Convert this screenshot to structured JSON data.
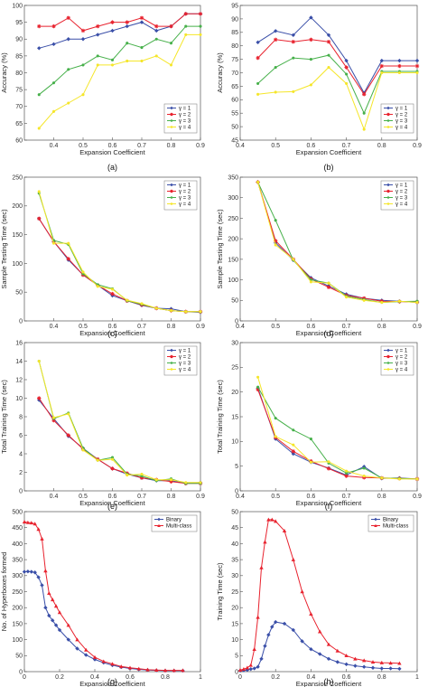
{
  "chart_data": [
    {
      "id": "a",
      "caption": "(a)",
      "type": "line",
      "xlabel": "Expansion Coefficient",
      "ylabel": "Accuracy (%)",
      "xlim": [
        0.3,
        0.9
      ],
      "ylim": [
        60,
        100
      ],
      "xticks": [
        "0.4",
        "0.5",
        "0.6",
        "0.7",
        "0.8",
        "0.9"
      ],
      "yticks": [
        "60",
        "65",
        "70",
        "75",
        "80",
        "85",
        "90",
        "95",
        "100"
      ],
      "legend_position": "bottom-right",
      "x": [
        0.35,
        0.4,
        0.45,
        0.5,
        0.55,
        0.6,
        0.65,
        0.7,
        0.75,
        0.8,
        0.85,
        0.9
      ],
      "series": [
        {
          "name": "γ = 1",
          "color": "#3a4fa8",
          "marker": "diamond",
          "values": [
            87.3,
            88.5,
            90.0,
            90.0,
            91.3,
            92.5,
            93.8,
            95.0,
            92.5,
            93.8,
            97.5,
            97.5
          ]
        },
        {
          "name": "γ = 2",
          "color": "#e8222e",
          "marker": "star",
          "values": [
            93.8,
            93.8,
            96.3,
            92.5,
            93.8,
            95.0,
            95.0,
            96.3,
            93.8,
            93.8,
            97.5,
            97.5
          ]
        },
        {
          "name": "γ = 3",
          "color": "#46b04a",
          "marker": "circle",
          "values": [
            73.5,
            77.0,
            81.0,
            82.3,
            85.0,
            83.8,
            88.8,
            87.5,
            90.0,
            88.8,
            93.8,
            93.8
          ]
        },
        {
          "name": "γ = 4",
          "color": "#f5e62a",
          "marker": "circle",
          "values": [
            63.5,
            68.5,
            71.0,
            73.5,
            82.3,
            82.3,
            83.5,
            83.5,
            85.0,
            82.3,
            91.3,
            91.3
          ]
        }
      ]
    },
    {
      "id": "b",
      "caption": "(b)",
      "type": "line",
      "xlabel": "Expansion Coefficient",
      "ylabel": "Accuracy (%)",
      "xlim": [
        0.4,
        0.9
      ],
      "ylim": [
        45,
        95
      ],
      "xticks": [
        "0.4",
        "0.5",
        "0.6",
        "0.7",
        "0.8",
        "0.9"
      ],
      "yticks": [
        "45",
        "50",
        "55",
        "60",
        "65",
        "70",
        "75",
        "80",
        "85",
        "90",
        "95"
      ],
      "legend_position": "bottom-right",
      "x": [
        0.45,
        0.5,
        0.55,
        0.6,
        0.65,
        0.7,
        0.75,
        0.8,
        0.85,
        0.9
      ],
      "series": [
        {
          "name": "γ = 1",
          "color": "#3a4fa8",
          "marker": "diamond",
          "values": [
            81.3,
            85.5,
            84.0,
            90.5,
            84.0,
            74.5,
            62.5,
            74.5,
            74.5,
            74.5
          ]
        },
        {
          "name": "γ = 2",
          "color": "#e8222e",
          "marker": "star",
          "values": [
            75.5,
            82.3,
            81.5,
            82.3,
            81.5,
            72.0,
            62.0,
            72.5,
            72.5,
            72.5
          ]
        },
        {
          "name": "γ = 3",
          "color": "#46b04a",
          "marker": "circle",
          "values": [
            66.0,
            72.0,
            75.5,
            75.0,
            76.5,
            69.5,
            55.0,
            70.5,
            70.5,
            70.5
          ]
        },
        {
          "name": "γ = 4",
          "color": "#f5e62a",
          "marker": "circle",
          "values": [
            62.0,
            62.8,
            63.0,
            65.5,
            72.0,
            66.0,
            49.0,
            70.0,
            70.0,
            70.0
          ]
        }
      ]
    },
    {
      "id": "c",
      "caption": "(c)",
      "type": "line",
      "xlabel": "Expansion Coefficient",
      "ylabel": "Sample Testing Time (sec)",
      "xlim": [
        0.3,
        0.9
      ],
      "ylim": [
        0,
        250
      ],
      "xticks": [
        "0.4",
        "0.5",
        "0.6",
        "0.7",
        "0.8",
        "0.9"
      ],
      "yticks": [
        "0",
        "50",
        "100",
        "150",
        "200",
        "250"
      ],
      "legend_position": "top-right",
      "x": [
        0.35,
        0.4,
        0.45,
        0.5,
        0.55,
        0.6,
        0.65,
        0.7,
        0.75,
        0.8,
        0.85,
        0.9
      ],
      "series": [
        {
          "name": "γ = 1",
          "color": "#3a4fa8",
          "marker": "diamond",
          "values": [
            178,
            138,
            106,
            80,
            62,
            44,
            35,
            27,
            22,
            21,
            16,
            15
          ]
        },
        {
          "name": "γ = 2",
          "color": "#e8222e",
          "marker": "star",
          "values": [
            178,
            138,
            108,
            80,
            62,
            47,
            35,
            28,
            22,
            18,
            16,
            16
          ]
        },
        {
          "name": "γ = 3",
          "color": "#46b04a",
          "marker": "circle",
          "values": [
            222,
            140,
            133,
            82,
            63,
            56,
            35,
            29,
            22,
            18,
            16,
            16
          ]
        },
        {
          "name": "γ = 4",
          "color": "#f5e62a",
          "marker": "circle",
          "values": [
            225,
            135,
            135,
            85,
            60,
            55,
            36,
            30,
            22,
            18,
            16,
            16
          ]
        }
      ]
    },
    {
      "id": "d",
      "caption": "(d)",
      "type": "line",
      "xlabel": "Expansion Coefficient",
      "ylabel": "Sample Testing Time (sec)",
      "xlim": [
        0.4,
        0.9
      ],
      "ylim": [
        0,
        350
      ],
      "xticks": [
        "0.4",
        "0.5",
        "0.6",
        "0.7",
        "0.8",
        "0.9"
      ],
      "yticks": [
        "0",
        "50",
        "100",
        "150",
        "200",
        "250",
        "300",
        "350"
      ],
      "legend_position": "top-right",
      "x": [
        0.45,
        0.5,
        0.55,
        0.6,
        0.65,
        0.7,
        0.75,
        0.8,
        0.85,
        0.9
      ],
      "series": [
        {
          "name": "γ = 1",
          "color": "#3a4fa8",
          "marker": "diamond",
          "values": [
            338,
            190,
            148,
            105,
            85,
            65,
            55,
            50,
            48,
            45
          ]
        },
        {
          "name": "γ = 2",
          "color": "#e8222e",
          "marker": "star",
          "values": [
            338,
            195,
            150,
            102,
            82,
            62,
            55,
            48,
            47,
            46
          ]
        },
        {
          "name": "γ = 3",
          "color": "#46b04a",
          "marker": "circle",
          "values": [
            338,
            245,
            148,
            100,
            92,
            60,
            52,
            45,
            47,
            48
          ]
        },
        {
          "name": "γ = 4",
          "color": "#f5e62a",
          "marker": "circle",
          "values": [
            338,
            185,
            150,
            95,
            92,
            58,
            50,
            45,
            48,
            45
          ]
        }
      ]
    },
    {
      "id": "e",
      "caption": "(e)",
      "type": "line",
      "xlabel": "Expansion Coefficient",
      "ylabel": "Total Training Time (sec)",
      "xlim": [
        0.3,
        0.9
      ],
      "ylim": [
        0,
        16
      ],
      "xticks": [
        "0.4",
        "0.5",
        "0.6",
        "0.7",
        "0.8",
        "0.9"
      ],
      "yticks": [
        "0",
        "2",
        "4",
        "6",
        "8",
        "10",
        "12",
        "14",
        "16"
      ],
      "legend_position": "top-right",
      "x": [
        0.35,
        0.4,
        0.45,
        0.5,
        0.55,
        0.6,
        0.65,
        0.7,
        0.75,
        0.8,
        0.85,
        0.9
      ],
      "series": [
        {
          "name": "γ = 1",
          "color": "#3a4fa8",
          "marker": "diamond",
          "values": [
            9.8,
            7.8,
            5.9,
            4.6,
            3.4,
            2.4,
            1.8,
            1.4,
            1.1,
            1.1,
            0.8,
            0.9
          ]
        },
        {
          "name": "γ = 2",
          "color": "#e8222e",
          "marker": "star",
          "values": [
            10.0,
            7.6,
            6.0,
            4.5,
            3.4,
            2.4,
            1.9,
            1.4,
            1.2,
            1.0,
            0.8,
            0.8
          ]
        },
        {
          "name": "γ = 3",
          "color": "#46b04a",
          "marker": "circle",
          "values": [
            14.0,
            7.8,
            8.4,
            4.6,
            3.3,
            3.6,
            1.8,
            1.6,
            1.1,
            1.3,
            0.8,
            0.8
          ]
        },
        {
          "name": "γ = 4",
          "color": "#f5e62a",
          "marker": "circle",
          "values": [
            14.0,
            7.9,
            8.3,
            4.4,
            3.3,
            3.4,
            1.7,
            1.8,
            1.2,
            1.2,
            0.9,
            0.9
          ]
        }
      ]
    },
    {
      "id": "f",
      "caption": "(f)",
      "type": "line",
      "xlabel": "Expansion Coefficient",
      "ylabel": "Total Training Time (sec)",
      "xlim": [
        0.4,
        0.9
      ],
      "ylim": [
        0,
        30
      ],
      "xticks": [
        "0.4",
        "0.5",
        "0.6",
        "0.7",
        "0.8",
        "0.9"
      ],
      "yticks": [
        "0",
        "5",
        "10",
        "15",
        "20",
        "25",
        "30"
      ],
      "legend_position": "top-right",
      "x": [
        0.45,
        0.5,
        0.55,
        0.6,
        0.65,
        0.7,
        0.75,
        0.8,
        0.85,
        0.9
      ],
      "series": [
        {
          "name": "γ = 1",
          "color": "#3a4fa8",
          "marker": "diamond",
          "values": [
            20.8,
            10.5,
            7.5,
            5.8,
            4.6,
            3.2,
            4.9,
            2.5,
            2.6,
            2.4
          ]
        },
        {
          "name": "γ = 2",
          "color": "#e8222e",
          "marker": "star",
          "values": [
            20.5,
            10.8,
            8.0,
            6.0,
            4.5,
            3.0,
            2.7,
            2.6,
            2.5,
            2.4
          ]
        },
        {
          "name": "γ = 3",
          "color": "#46b04a",
          "marker": "circle",
          "values": [
            21.0,
            14.7,
            12.3,
            10.5,
            5.6,
            3.6,
            4.6,
            2.6,
            2.5,
            2.4
          ]
        },
        {
          "name": "γ = 4",
          "color": "#f5e62a",
          "marker": "circle",
          "values": [
            23.0,
            11.0,
            9.3,
            5.8,
            5.9,
            4.0,
            3.0,
            2.6,
            2.4,
            2.4
          ]
        }
      ]
    },
    {
      "id": "g",
      "caption": "(g)",
      "type": "line",
      "xlabel": "Expansion Coefficient",
      "ylabel": "No. of Hyperboxes formed",
      "xlim": [
        0,
        1
      ],
      "ylim": [
        0,
        500
      ],
      "xticks": [
        "0",
        "0.2",
        "0.4",
        "0.6",
        "0.8",
        "1"
      ],
      "yticks": [
        "0",
        "50",
        "100",
        "150",
        "200",
        "250",
        "300",
        "350",
        "400",
        "450",
        "500"
      ],
      "legend_position": "top-right",
      "x": [
        0,
        0.02,
        0.04,
        0.06,
        0.08,
        0.1,
        0.12,
        0.14,
        0.16,
        0.18,
        0.2,
        0.25,
        0.3,
        0.35,
        0.4,
        0.45,
        0.5,
        0.55,
        0.6,
        0.65,
        0.7,
        0.75,
        0.8,
        0.85,
        0.9
      ],
      "series": [
        {
          "name": "Binary",
          "color": "#3a4fa8",
          "marker": "diamond",
          "values": [
            312,
            313,
            312,
            310,
            295,
            270,
            200,
            175,
            160,
            145,
            130,
            100,
            72,
            52,
            38,
            28,
            20,
            14,
            10,
            7,
            5,
            4,
            3,
            3,
            3
          ]
        },
        {
          "name": "Multi-class",
          "color": "#e8222e",
          "marker": "triangle",
          "values": [
            468,
            466,
            465,
            462,
            445,
            415,
            315,
            245,
            225,
            205,
            185,
            145,
            100,
            68,
            45,
            32,
            24,
            16,
            12,
            9,
            6,
            5,
            4,
            4,
            4
          ]
        }
      ]
    },
    {
      "id": "h",
      "caption": "(h)",
      "type": "line",
      "xlabel": "Expansion Coefficient",
      "ylabel": "Training Time (sec)",
      "xlim": [
        0,
        1
      ],
      "ylim": [
        0,
        50
      ],
      "xticks": [
        "0",
        "0.2",
        "0.4",
        "0.6",
        "0.8",
        "1"
      ],
      "yticks": [
        "0",
        "5",
        "10",
        "15",
        "20",
        "25",
        "30",
        "35",
        "40",
        "45",
        "50"
      ],
      "legend_position": "top-right",
      "x": [
        0,
        0.02,
        0.04,
        0.06,
        0.08,
        0.1,
        0.12,
        0.14,
        0.16,
        0.18,
        0.2,
        0.25,
        0.3,
        0.35,
        0.4,
        0.45,
        0.5,
        0.55,
        0.6,
        0.65,
        0.7,
        0.75,
        0.8,
        0.85,
        0.9
      ],
      "series": [
        {
          "name": "Binary",
          "color": "#3a4fa8",
          "marker": "diamond",
          "values": [
            0.3,
            0.4,
            0.5,
            0.8,
            1.0,
            1.5,
            4.0,
            8.0,
            11.5,
            14.0,
            15.5,
            15.0,
            13.0,
            9.5,
            7.0,
            5.5,
            4.0,
            3.0,
            2.3,
            1.8,
            1.5,
            1.2,
            1.0,
            1.0,
            0.9
          ]
        },
        {
          "name": "Multi-class",
          "color": "#e8222e",
          "marker": "triangle",
          "values": [
            0.5,
            0.8,
            1.2,
            2.0,
            7.0,
            17.0,
            32.5,
            40.5,
            47.5,
            47.5,
            47.0,
            44.0,
            35.0,
            25.0,
            18.0,
            12.5,
            8.5,
            6.5,
            5.0,
            4.0,
            3.5,
            3.0,
            2.8,
            2.7,
            2.6
          ]
        }
      ]
    }
  ]
}
